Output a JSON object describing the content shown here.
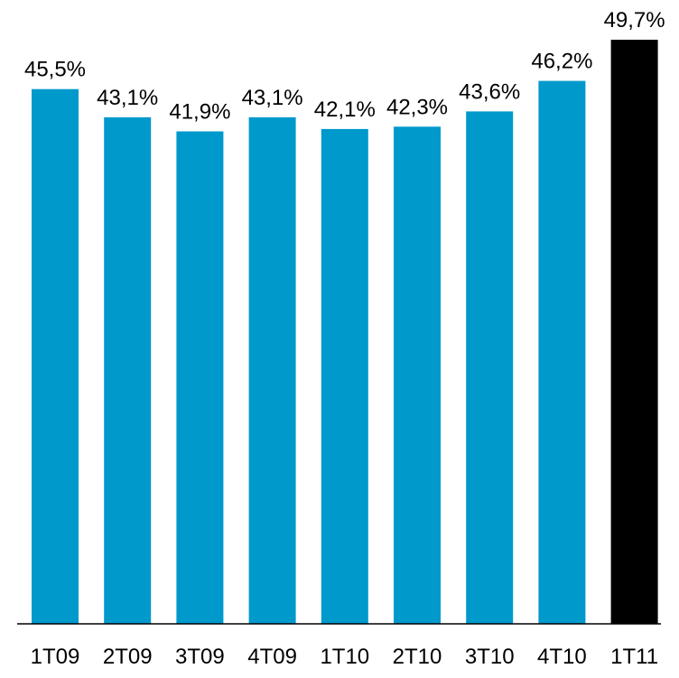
{
  "chart_data": {
    "type": "bar",
    "categories": [
      "1T09",
      "2T09",
      "3T09",
      "4T09",
      "1T10",
      "2T10",
      "3T10",
      "4T10",
      "1T11"
    ],
    "values": [
      45.5,
      43.1,
      41.9,
      43.1,
      42.1,
      42.3,
      43.6,
      46.2,
      49.7
    ],
    "data_labels": [
      "45,5%",
      "43,1%",
      "41,9%",
      "43,1%",
      "42,1%",
      "42,3%",
      "43,6%",
      "46,2%",
      "49,7%"
    ],
    "bar_colors": [
      "#0099cc",
      "#0099cc",
      "#0099cc",
      "#0099cc",
      "#0099cc",
      "#0099cc",
      "#0099cc",
      "#0099cc",
      "#000000"
    ],
    "title": "",
    "xlabel": "",
    "ylabel": "",
    "ylim": [
      0,
      50
    ],
    "grid": false,
    "legend": "none"
  }
}
